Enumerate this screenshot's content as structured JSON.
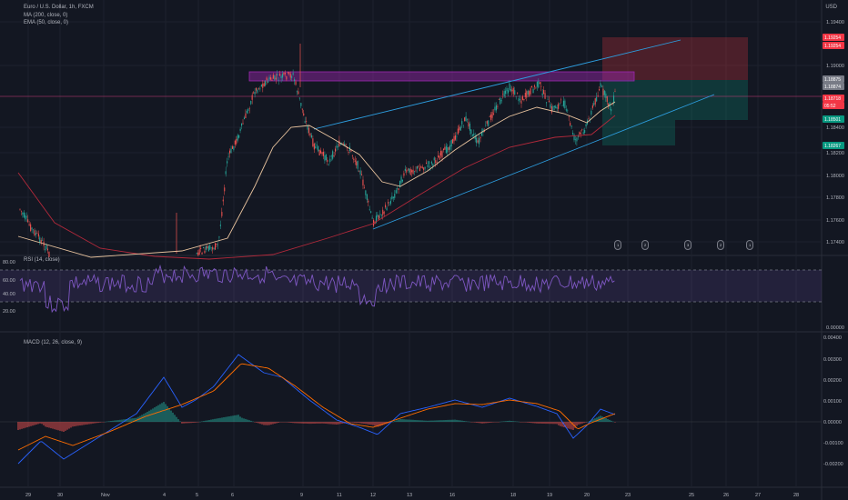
{
  "header": {
    "symbol_title": "Euro / U.S. Dollar, 1h, FXCM",
    "indicators": [
      "MA (200, close, 0)",
      "EMA (50, close, 0)"
    ],
    "currency": "USD"
  },
  "panes": {
    "rsi_title": "RSI (14, close)",
    "macd_title": "MACD (12, 26, close, 9)"
  },
  "price_axis": {
    "ticks": [
      "1.19400",
      "1.19000",
      "1.18400",
      "1.18200",
      "1.18000",
      "1.17800",
      "1.17600",
      "1.17400"
    ],
    "tags": [
      {
        "text": "1.19254",
        "color": "#f23645"
      },
      {
        "text": "1.19254",
        "color": "#f23645"
      },
      {
        "text": "1.18875",
        "color": "#787b86"
      },
      {
        "text": "1.18874",
        "color": "#787b86"
      },
      {
        "text": "1.18718",
        "color": "#f23645"
      },
      {
        "text": "05:52",
        "color": "#f23645"
      },
      {
        "text": "1.18501",
        "color": "#089981"
      },
      {
        "text": "1.18267",
        "color": "#089981"
      }
    ]
  },
  "rsi_axis": {
    "ticks": [
      "80.00",
      "60.00",
      "40.00",
      "20.00"
    ],
    "zero": "0.00000"
  },
  "macd_axis": {
    "ticks": [
      "0.00400",
      "0.00300",
      "0.00200",
      "0.00100",
      "0.00000",
      "-0.00100",
      "-0.00200"
    ]
  },
  "time_axis": {
    "labels": [
      "29",
      "30",
      "Nov",
      "4",
      "5",
      "6",
      "9",
      "11",
      "12",
      "13",
      "16",
      "18",
      "19",
      "20",
      "23",
      "25",
      "26",
      "27",
      "28"
    ]
  },
  "events": [
    "1",
    "2",
    "3",
    "2",
    "1"
  ],
  "colors": {
    "up": "#26a69a",
    "down": "#ef5350",
    "ma200": "#b2293b",
    "ema50": "#e8c39e",
    "channel": "#2d9ee0",
    "zone": "#7e3fae",
    "rsi": "#7e57c2",
    "macd": "#2962ff",
    "signal": "#ff6d00"
  }
}
